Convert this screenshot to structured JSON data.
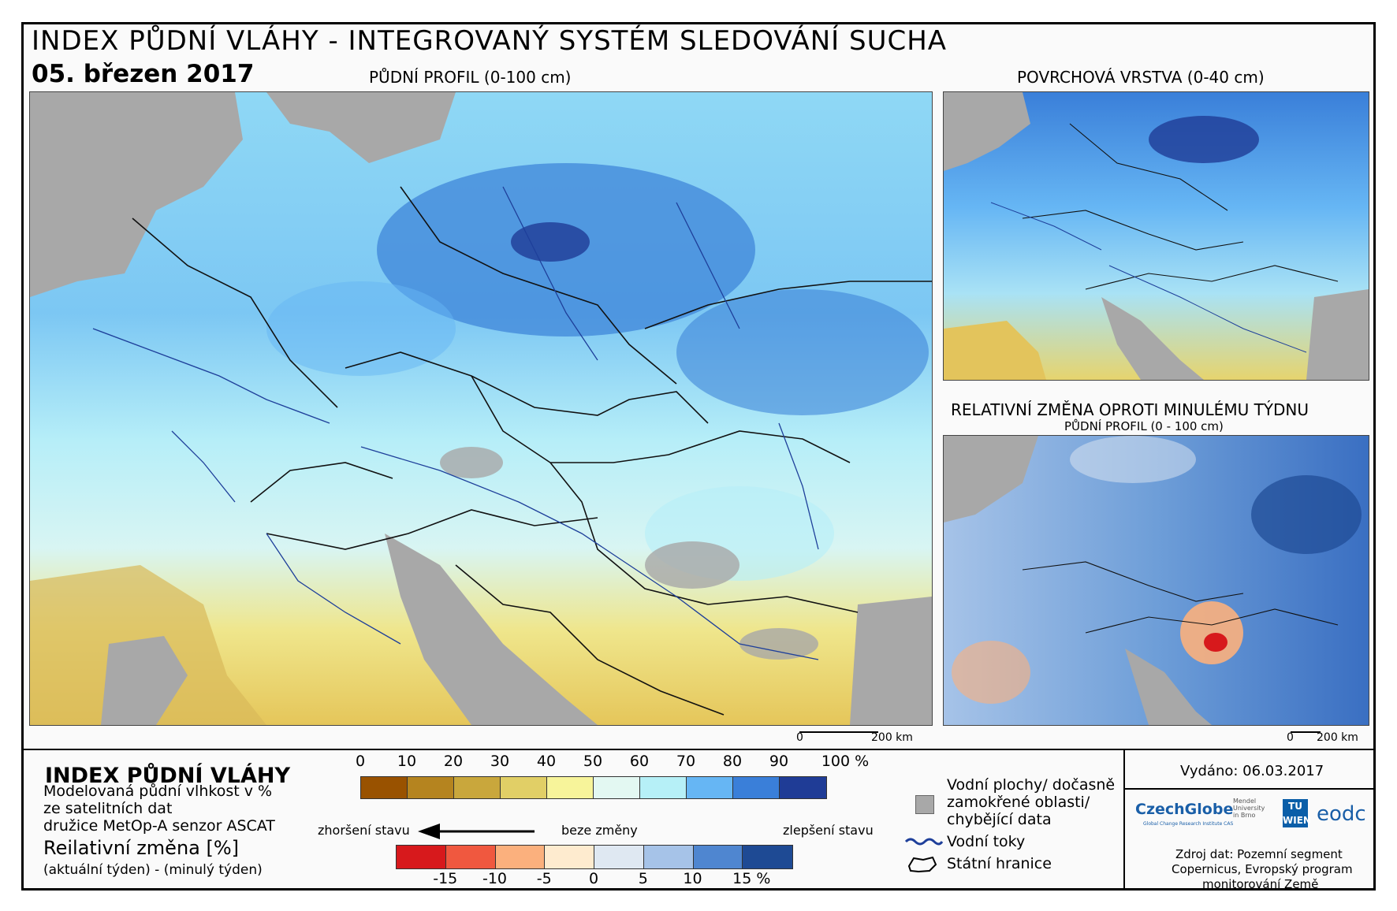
{
  "header": {
    "title": "INDEX PŮDNÍ VLÁHY - INTEGROVANÝ SYSTÉM SLEDOVÁNÍ SUCHA",
    "date": "05. březen 2017"
  },
  "maps": {
    "main_label": "PŮDNÍ PROFIL (0-100 cm)",
    "top_right_label": "POVRCHOVÁ VRSTVA (0-40 cm)",
    "bottom_right_label": "RELATIVNÍ ZMĚNA OPROTI MINULÉMU TÝDNU",
    "bottom_right_sublabel": "PŮDNÍ PROFIL (0 - 100 cm)",
    "scale_zero": "0",
    "scale_main": "200 km",
    "scale_small": "200 km"
  },
  "legend": {
    "title": "INDEX PŮDNÍ VLÁHY",
    "desc_lines": [
      "Modelovaná půdní vlhkost v %",
      "ze satelitních dat",
      "družice MetOp-A senzor ASCAT"
    ],
    "change_title": "Reilativní změna [%]",
    "change_desc": "(aktuální týden) - (minulý týden)",
    "index_ticks": [
      "0",
      "10",
      "20",
      "30",
      "40",
      "50",
      "60",
      "70",
      "80",
      "90",
      "100 %"
    ],
    "index_colors": [
      "#995200",
      "#b5841f",
      "#c9a73c",
      "#e1cf66",
      "#f7f49a",
      "#e3f8f2",
      "#b6f0f7",
      "#66b6f4",
      "#3a7fd9",
      "#1f3c96"
    ],
    "worse": "zhoršení stavu",
    "none": "beze změny",
    "better": "zlepšení stavu",
    "change_ticks": [
      "-15",
      "-10",
      "-5",
      "0",
      "5",
      "10",
      "15 %"
    ],
    "change_colors": [
      "#d7191c",
      "#f0583f",
      "#fbb07d",
      "#feebcf",
      "#dfe8f2",
      "#a6c3e8",
      "#4f86d0",
      "#1e4a94"
    ],
    "nodata_label": [
      "Vodní plochy/ dočasně",
      "zamokřené oblasti/",
      "chybějící data"
    ],
    "rivers_label": "Vodní toky",
    "borders_label": "Státní hranice"
  },
  "info": {
    "issued": "Vydáno: 06.03.2017",
    "logos": [
      "CzechGlobe",
      "Mendel University in Brno",
      "TU WIEN",
      "eodc"
    ],
    "czechglobe_sub": "Global Change Research Institute CAS",
    "source_lines": [
      "Zdroj dat: Pozemní segment",
      "Copernicus, Evropský program",
      "monitorování Země"
    ]
  }
}
